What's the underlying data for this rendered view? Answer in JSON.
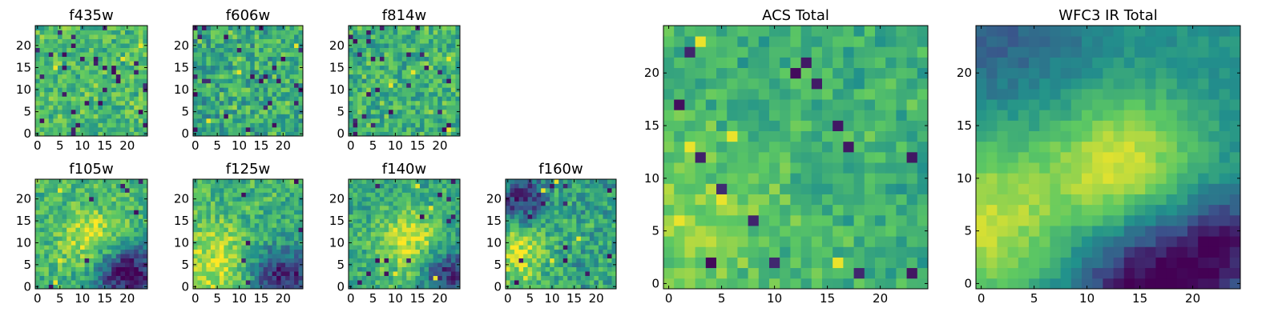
{
  "figure": {
    "colormap": "viridis",
    "colormap_stops": [
      "#440154",
      "#3b528b",
      "#21918c",
      "#5ec962",
      "#fde725"
    ]
  },
  "chart_data": [
    {
      "id": "f435w",
      "type": "heatmap",
      "title": "f435w",
      "size": 25,
      "xlim": [
        0,
        24
      ],
      "ylim": [
        0,
        24
      ],
      "xticks": [
        0,
        5,
        10,
        15,
        20
      ],
      "yticks": [
        0,
        5,
        10,
        15,
        20
      ],
      "pattern": "noise",
      "field": {
        "base": 0.68,
        "spread": 0.16,
        "noise": 0.05
      },
      "outlier_rate": 0.05
    },
    {
      "id": "f606w",
      "type": "heatmap",
      "title": "f606w",
      "size": 25,
      "xlim": [
        0,
        24
      ],
      "ylim": [
        0,
        24
      ],
      "xticks": [
        0,
        5,
        10,
        15,
        20
      ],
      "yticks": [
        0,
        5,
        10,
        15,
        20
      ],
      "pattern": "noise",
      "field": {
        "base": 0.62,
        "spread": 0.2,
        "noise": 0.05
      },
      "outlier_rate": 0.06
    },
    {
      "id": "f814w",
      "type": "heatmap",
      "title": "f814w",
      "size": 25,
      "xlim": [
        0,
        24
      ],
      "ylim": [
        0,
        24
      ],
      "xticks": [
        0,
        5,
        10,
        15,
        20
      ],
      "yticks": [
        0,
        5,
        10,
        15,
        20
      ],
      "pattern": "noise",
      "field": {
        "base": 0.64,
        "spread": 0.18,
        "noise": 0.05
      },
      "outlier_rate": 0.05
    },
    {
      "id": "f105w",
      "type": "heatmap",
      "title": "f105w",
      "size": 25,
      "xlim": [
        0,
        24
      ],
      "ylim": [
        0,
        24
      ],
      "xticks": [
        0,
        5,
        10,
        15,
        20
      ],
      "yticks": [
        0,
        5,
        10,
        15,
        20
      ],
      "pattern": "smooth",
      "field": {
        "base": 0.66,
        "spread": 0.08,
        "noise": 0.16,
        "blob": [
          13,
          11,
          5,
          0.3
        ],
        "dark": [
          20,
          3,
          5,
          0.7
        ]
      },
      "outlier_rate": 0.01
    },
    {
      "id": "f125w",
      "type": "heatmap",
      "title": "f125w",
      "size": 25,
      "xlim": [
        0,
        24
      ],
      "ylim": [
        0,
        24
      ],
      "xticks": [
        0,
        5,
        10,
        15,
        20
      ],
      "yticks": [
        0,
        5,
        10,
        15,
        20
      ],
      "pattern": "smooth",
      "field": {
        "base": 0.64,
        "spread": 0.1,
        "noise": 0.16,
        "blob": [
          4,
          6,
          6,
          0.3
        ],
        "dark": [
          20,
          2,
          5,
          0.55
        ]
      },
      "outlier_rate": 0.02
    },
    {
      "id": "f140w",
      "type": "heatmap",
      "title": "f140w",
      "size": 25,
      "xlim": [
        0,
        24
      ],
      "ylim": [
        0,
        24
      ],
      "xticks": [
        0,
        5,
        10,
        15,
        20
      ],
      "yticks": [
        0,
        5,
        10,
        15,
        20
      ],
      "pattern": "smooth",
      "field": {
        "base": 0.6,
        "spread": 0.12,
        "noise": 0.15,
        "blob": [
          13,
          10,
          5,
          0.35
        ],
        "dark": [
          22,
          3,
          4,
          0.5
        ]
      },
      "outlier_rate": 0.02
    },
    {
      "id": "f160w",
      "type": "heatmap",
      "title": "f160w",
      "size": 25,
      "xlim": [
        0,
        24
      ],
      "ylim": [
        0,
        24
      ],
      "xticks": [
        0,
        5,
        10,
        15,
        20
      ],
      "yticks": [
        0,
        5,
        10,
        15,
        20
      ],
      "pattern": "smooth",
      "field": {
        "base": 0.58,
        "spread": 0.12,
        "noise": 0.18,
        "blob": [
          2,
          8,
          5,
          0.35
        ],
        "dark": [
          3,
          20,
          4,
          0.45
        ]
      },
      "outlier_rate": 0.03
    },
    {
      "id": "acs-total",
      "type": "heatmap",
      "title": "ACS Total",
      "size": 25,
      "xlim": [
        0,
        24
      ],
      "ylim": [
        0,
        24
      ],
      "xticks": [
        0,
        5,
        10,
        15,
        20
      ],
      "yticks": [
        0,
        5,
        10,
        15,
        20
      ],
      "pattern": "noise",
      "field": {
        "base": 0.64,
        "spread": 0.1,
        "noise": 0.06,
        "blob": [
          2,
          6,
          6,
          0.15
        ]
      },
      "outlier_rate": 0.03
    },
    {
      "id": "wfc3-ir-total",
      "type": "heatmap",
      "title": "WFC3 IR Total",
      "size": 25,
      "xlim": [
        0,
        24
      ],
      "ylim": [
        0,
        24
      ],
      "xticks": [
        0,
        5,
        10,
        15,
        20
      ],
      "yticks": [
        0,
        5,
        10,
        15,
        20
      ],
      "pattern": "smooth",
      "field": {
        "base": 0.5,
        "spread": 0.0,
        "noise": 0.06,
        "blob": [
          13.5,
          11,
          5,
          0.45
        ],
        "blob2": [
          0,
          6,
          6,
          0.4
        ],
        "dark": [
          16,
          0,
          5,
          0.55
        ],
        "dark2": [
          23,
          4,
          3,
          0.35
        ],
        "darktop": [
          2,
          24,
          6,
          0.2
        ]
      },
      "outlier_rate": 0.0
    }
  ]
}
